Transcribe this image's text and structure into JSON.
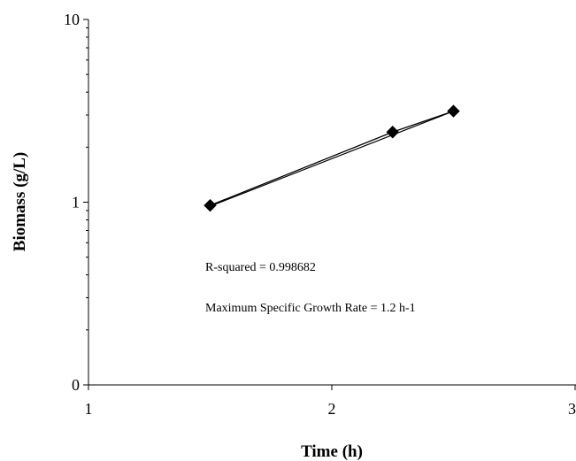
{
  "chart_data": {
    "type": "scatter",
    "x_scale": "linear",
    "y_scale": "log",
    "xlim": [
      1,
      3
    ],
    "xticks": [
      1,
      2,
      3
    ],
    "xtick_labels": [
      "1",
      "2",
      "3"
    ],
    "ytick_labels": [
      "10",
      "1",
      "0"
    ],
    "xlabel": "Time (h)",
    "ylabel": "Biomass (g/L)",
    "grid": false,
    "legend": "none",
    "series": [
      {
        "marker": "diamond",
        "color": "#000000",
        "points": [
          {
            "x": 1.5,
            "y": 0.96
          },
          {
            "x": 2.25,
            "y": 2.42
          },
          {
            "x": 2.5,
            "y": 3.15
          }
        ]
      }
    ],
    "trendline": {
      "type": "exponential",
      "x_range": [
        1.5,
        2.5
      ],
      "y_range": [
        0.95,
        3.15
      ]
    },
    "annotations": [
      "R-squared = 0.998682",
      "Maximum Specific Growth Rate = 1.2 h-1"
    ]
  }
}
